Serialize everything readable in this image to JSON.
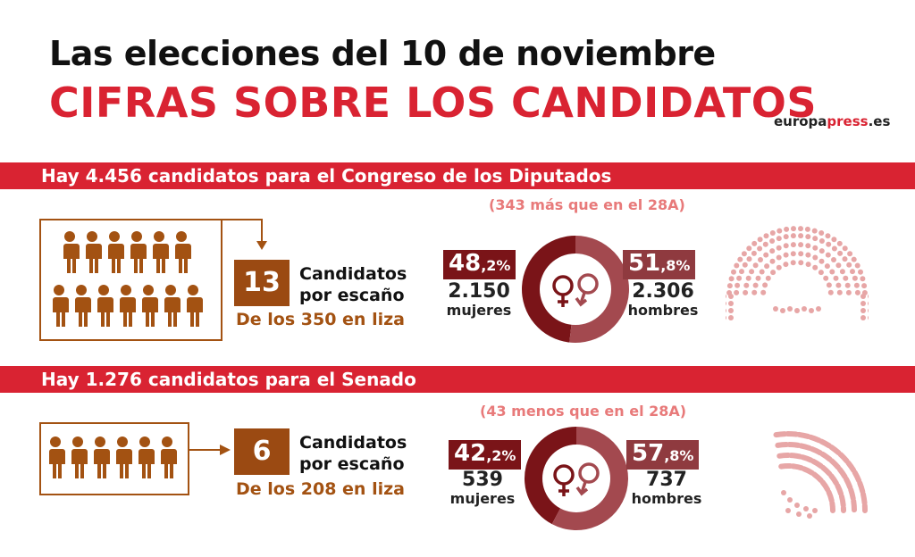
{
  "header": {
    "title": "Las elecciones del 10 de noviembre",
    "subtitle": "CIFRAS SOBRE LOS CANDIDATOS",
    "logo_part1": "europa",
    "logo_part2": "press",
    "logo_part3": ".es"
  },
  "congreso": {
    "banner": "Hay 4.456 candidatos para el Congreso de los Diputados",
    "comparison": "(343 más que en el 28A)",
    "per_seat": "13",
    "per_seat_label_1": "Candidatos",
    "per_seat_label_2": "por escaño",
    "seats": "De los 350 en liza",
    "women_pct": "48",
    "women_pct_dec": ",2%",
    "women_count": "2.150",
    "women_label": "mujeres",
    "men_pct": "51",
    "men_pct_dec": ",8%",
    "men_count": "2.306",
    "men_label": "hombres",
    "women_share": 0.482
  },
  "senado": {
    "banner": "Hay 1.276 candidatos para el Senado",
    "comparison": "(43 menos que en el 28A)",
    "per_seat": "6",
    "per_seat_label_1": "Candidatos",
    "per_seat_label_2": "por escaño",
    "seats": "De los 208 en liza",
    "women_pct": "42",
    "women_pct_dec": ",2%",
    "women_count": "539",
    "women_label": "mujeres",
    "men_pct": "57",
    "men_pct_dec": ",8%",
    "men_count": "737",
    "men_label": "hombres",
    "women_share": 0.422
  },
  "icons": [
    "person-icon",
    "female-symbol-icon",
    "male-symbol-icon",
    "hemicycle-icon",
    "arrow-icon"
  ],
  "colors": {
    "accent": "#d92332",
    "brown": "#9b4a12",
    "women": "#7a1418",
    "men": "#8f3a3f",
    "seats": "#e7a6a6"
  }
}
